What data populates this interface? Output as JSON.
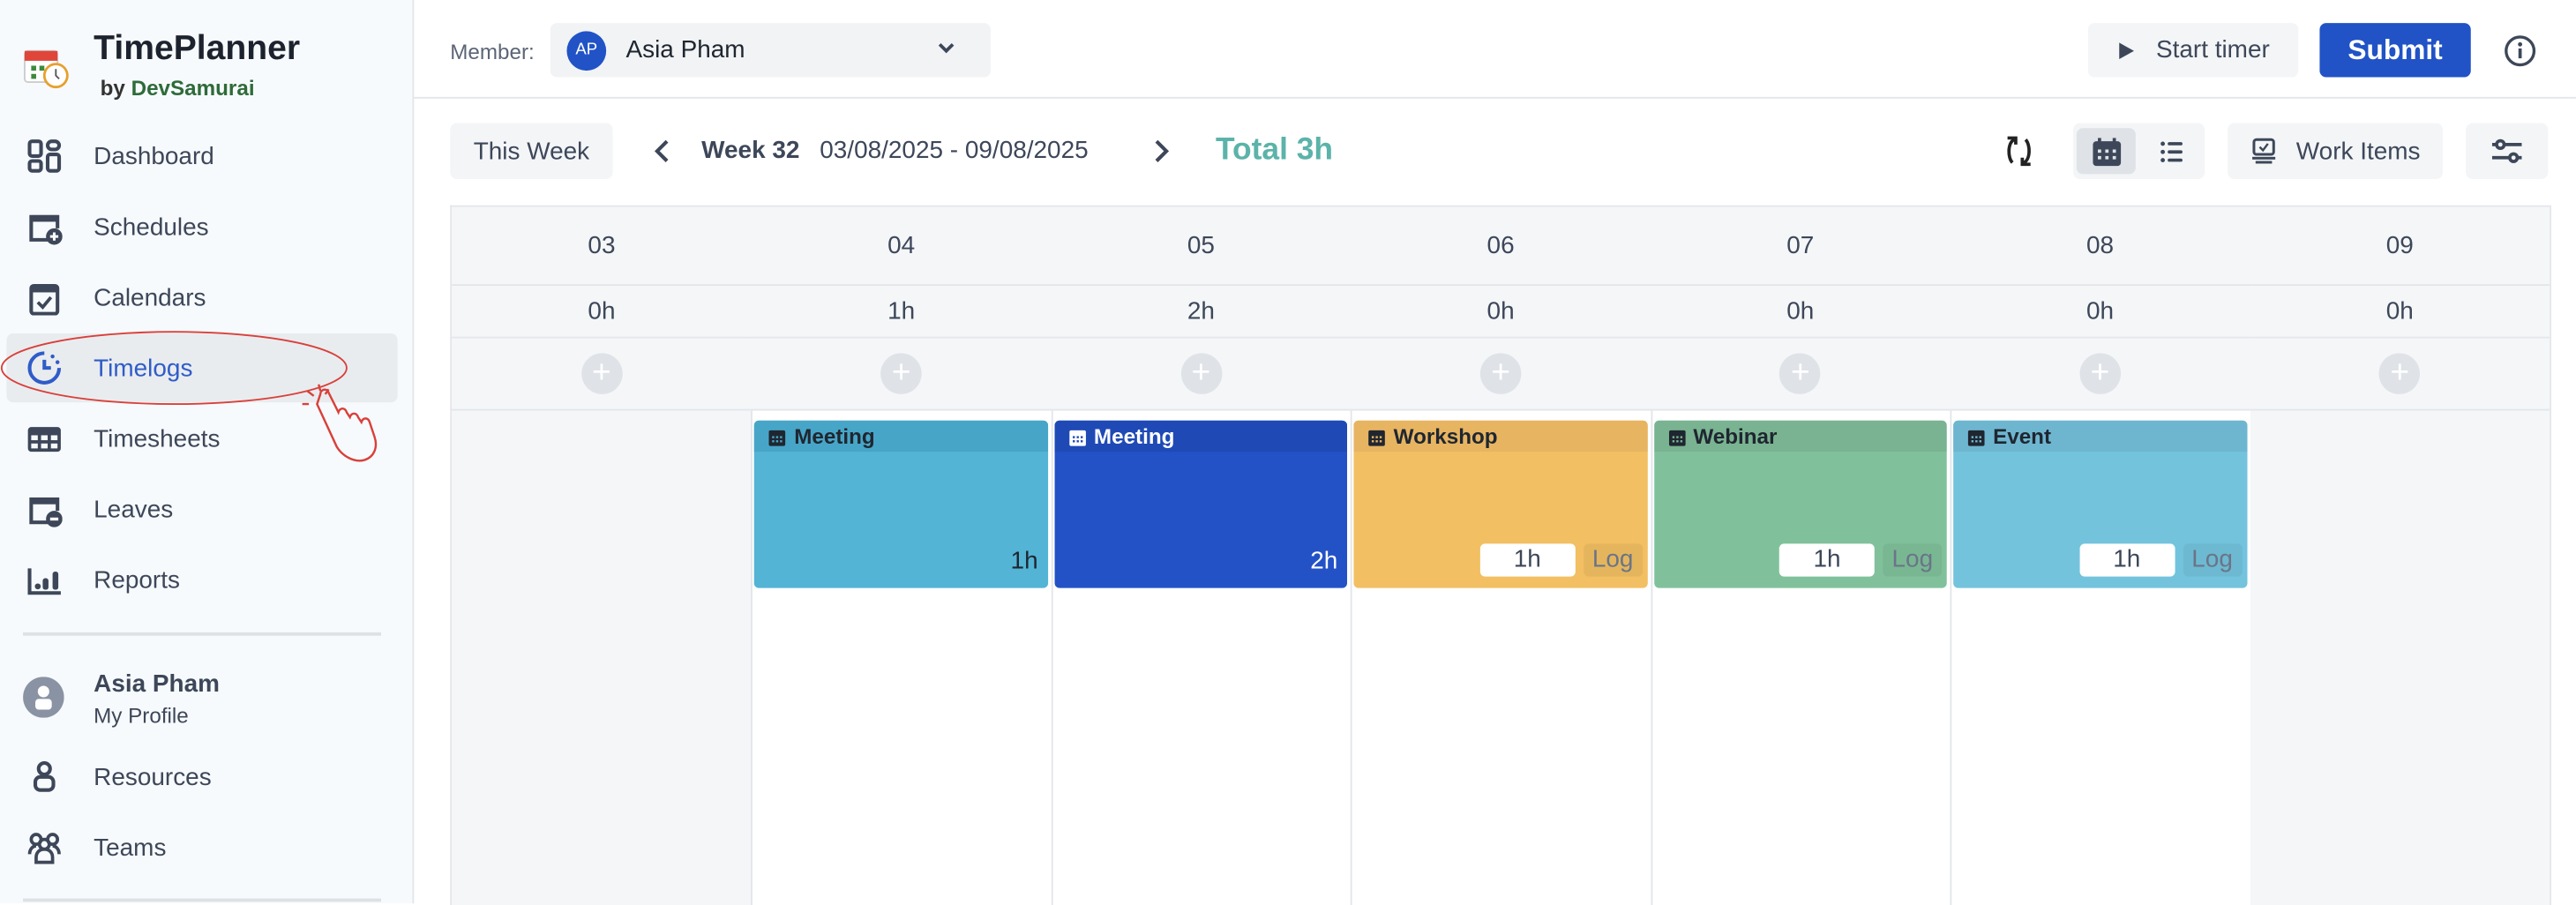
{
  "app": {
    "title": "TimePlanner",
    "by": "by",
    "brand": "DevSamurai"
  },
  "sidebar": {
    "items": [
      {
        "label": "Dashboard",
        "icon": "dashboard-icon"
      },
      {
        "label": "Schedules",
        "icon": "calendar-plus-icon"
      },
      {
        "label": "Calendars",
        "icon": "calendar-check-icon"
      },
      {
        "label": "Timelogs",
        "icon": "clock-icon",
        "active": true
      },
      {
        "label": "Timesheets",
        "icon": "table-icon"
      },
      {
        "label": "Leaves",
        "icon": "calendar-minus-icon"
      },
      {
        "label": "Reports",
        "icon": "bar-chart-icon"
      }
    ],
    "profile": {
      "name": "Asia Pham",
      "sub": "My Profile"
    },
    "bottom_items": [
      {
        "label": "Resources",
        "icon": "user-icon"
      },
      {
        "label": "Teams",
        "icon": "users-icon"
      }
    ]
  },
  "header": {
    "member_label": "Member:",
    "member_initials": "AP",
    "member_name": "Asia Pham",
    "start_timer": "Start timer",
    "submit": "Submit"
  },
  "toolbar": {
    "this_week": "This Week",
    "week": "Week 32",
    "range": "03/08/2025 - 09/08/2025",
    "total": "Total 3h",
    "work_items": "Work Items",
    "view": "calendar"
  },
  "colors": {
    "accent": "#2153c6",
    "total": "#5bb3a9"
  },
  "days": [
    {
      "date": "03",
      "hours": "0h"
    },
    {
      "date": "04",
      "hours": "1h",
      "event": {
        "title": "Meeting",
        "hours": "1h",
        "bg": "#53b4d6",
        "hd": "#47a6c8",
        "fg": "#1f2630"
      }
    },
    {
      "date": "05",
      "hours": "2h",
      "event": {
        "title": "Meeting",
        "hours": "2h",
        "bg": "#2352c6",
        "hd": "#1f4ab6",
        "fg": "#ffffff"
      }
    },
    {
      "date": "06",
      "hours": "0h",
      "event": {
        "title": "Workshop",
        "input": "1h",
        "log": "Log",
        "bg": "#f2bf62",
        "hd": "#e7b462",
        "fg": "#1f2630"
      }
    },
    {
      "date": "07",
      "hours": "0h",
      "event": {
        "title": "Webinar",
        "input": "1h",
        "log": "Log",
        "bg": "#80c19b",
        "hd": "#79b391",
        "fg": "#1f2630"
      }
    },
    {
      "date": "08",
      "hours": "0h",
      "event": {
        "title": "Event",
        "input": "1h",
        "log": "Log",
        "bg": "#73c3dd",
        "hd": "#6eb6d0",
        "fg": "#1f2630"
      }
    },
    {
      "date": "09",
      "hours": "0h"
    }
  ]
}
